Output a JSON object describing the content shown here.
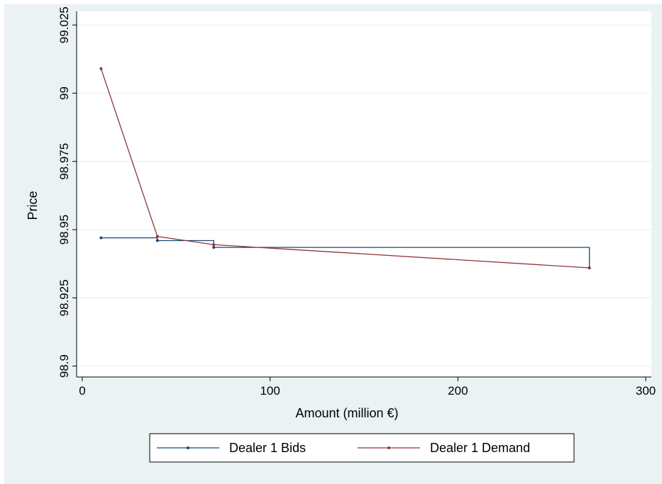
{
  "chart_data": {
    "type": "line",
    "title": "",
    "xlabel": "Amount (million €)",
    "ylabel": "Price",
    "xlim": [
      -3,
      303
    ],
    "ylim": [
      98.896,
      99.03
    ],
    "xticks": [
      0,
      100,
      200,
      300
    ],
    "xtick_labels": [
      "0",
      "100",
      "200",
      "300"
    ],
    "yticks": [
      98.9,
      98.925,
      98.95,
      98.975,
      99,
      99.025
    ],
    "ytick_labels": [
      "98.9",
      "98.925",
      "98.95",
      "98.975",
      "99",
      "99.025"
    ],
    "grid": true,
    "legend_position": "bottom",
    "series": [
      {
        "name": "Dealer 1 Bids",
        "color": "#1a476f",
        "step": true,
        "points": [
          {
            "x": 10,
            "y": 98.947
          },
          {
            "x": 40,
            "y": 98.946
          },
          {
            "x": 70,
            "y": 98.9435
          },
          {
            "x": 270,
            "y": 98.936
          }
        ]
      },
      {
        "name": "Dealer 1 Demand",
        "color": "#90353b",
        "step": false,
        "points": [
          {
            "x": 10,
            "y": 99.009
          },
          {
            "x": 40,
            "y": 98.9475
          },
          {
            "x": 70,
            "y": 98.9445
          },
          {
            "x": 270,
            "y": 98.936
          }
        ]
      }
    ]
  }
}
